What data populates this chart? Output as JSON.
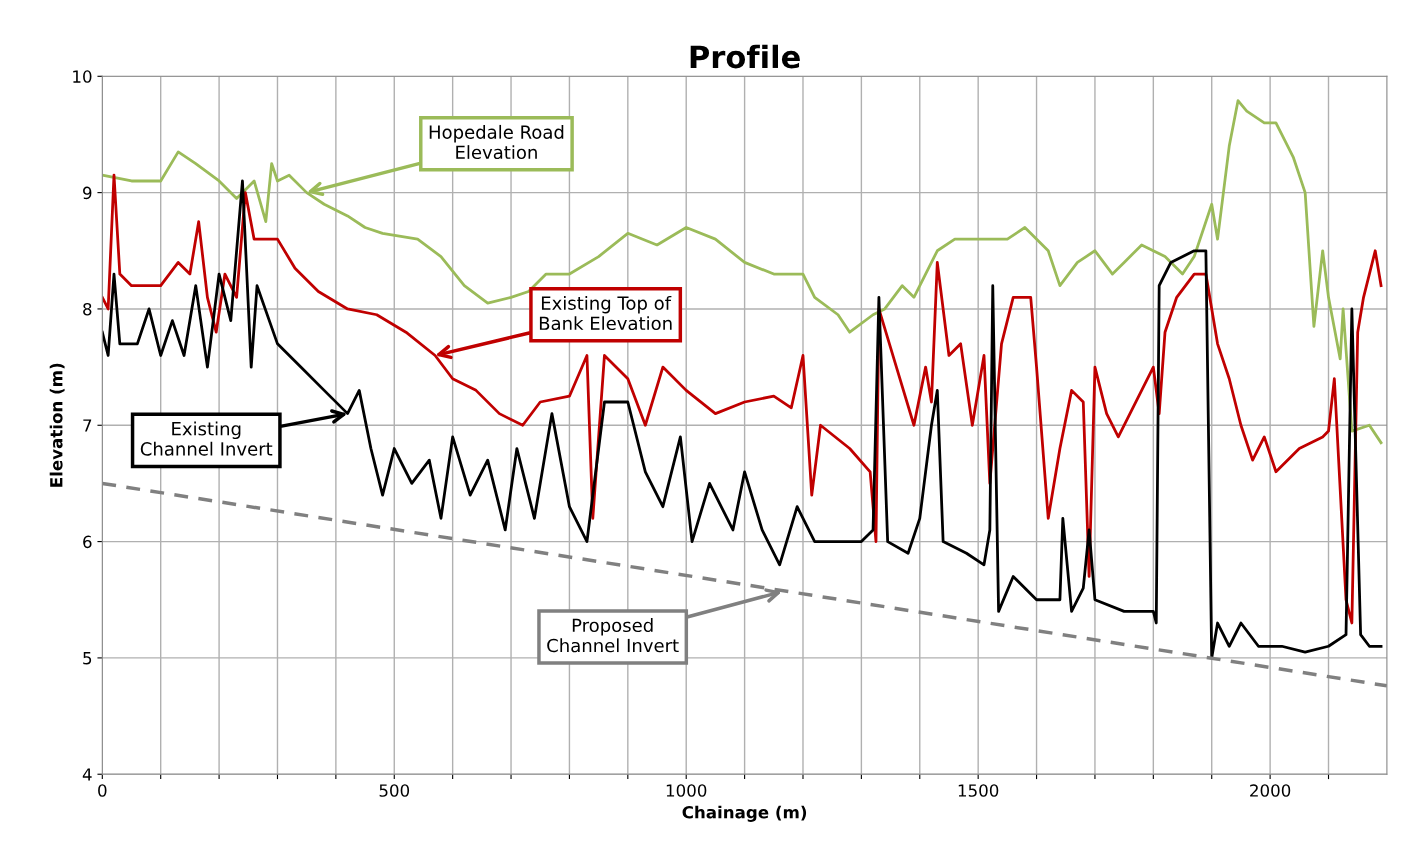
{
  "chart_data": {
    "type": "line",
    "title": "Profile",
    "xlabel": "Chainage (m)",
    "ylabel": "Elevation (m)",
    "xlim": [
      0,
      2200
    ],
    "ylim": [
      4,
      10
    ],
    "xticks": [
      0,
      {
        "value": 100,
        "label": null
      },
      {
        "value": 200,
        "label": null
      },
      {
        "value": 300,
        "label": null
      },
      {
        "value": 400,
        "label": null
      },
      500,
      {
        "value": 600,
        "label": null
      },
      {
        "value": 700,
        "label": null
      },
      {
        "value": 800,
        "label": null
      },
      {
        "value": 900,
        "label": null
      },
      1000,
      {
        "value": 1100,
        "label": null
      },
      {
        "value": 1200,
        "label": null
      },
      {
        "value": 1300,
        "label": null
      },
      {
        "value": 1400,
        "label": null
      },
      1500,
      {
        "value": 1600,
        "label": null
      },
      {
        "value": 1700,
        "label": null
      },
      {
        "value": 1800,
        "label": null
      },
      {
        "value": 1900,
        "label": null
      },
      2000,
      {
        "value": 2100,
        "label": null
      }
    ],
    "yticks": [
      4,
      5,
      6,
      7,
      8,
      9,
      10
    ],
    "grid": true,
    "series": [
      {
        "color": "#9bbb59",
        "line_style": "solid",
        "x": [
          0,
          50,
          100,
          130,
          160,
          200,
          230,
          260,
          280,
          290,
          300,
          320,
          350,
          380,
          420,
          450,
          480,
          540,
          580,
          620,
          660,
          700,
          730,
          760,
          800,
          850,
          900,
          950,
          1000,
          1050,
          1100,
          1150,
          1200,
          1220,
          1260,
          1280,
          1320,
          1340,
          1370,
          1390,
          1430,
          1460,
          1500,
          1550,
          1580,
          1620,
          1640,
          1670,
          1700,
          1730,
          1750,
          1780,
          1820,
          1850,
          1870,
          1900,
          1910,
          1930,
          1945,
          1960,
          1990,
          2010,
          2040,
          2060,
          2075,
          2090,
          2100,
          2120,
          2125,
          2140,
          2170,
          2190
        ],
        "values": [
          9.15,
          9.1,
          9.1,
          9.35,
          9.25,
          9.1,
          8.95,
          9.1,
          8.75,
          9.25,
          9.1,
          9.15,
          9.0,
          8.9,
          8.8,
          8.7,
          8.65,
          8.6,
          8.45,
          8.2,
          8.05,
          8.1,
          8.15,
          8.3,
          8.3,
          8.45,
          8.65,
          8.55,
          8.7,
          8.6,
          8.4,
          8.3,
          8.3,
          8.1,
          7.95,
          7.8,
          7.95,
          8.0,
          8.2,
          8.1,
          8.5,
          8.6,
          8.6,
          8.6,
          8.7,
          8.5,
          8.2,
          8.4,
          8.5,
          8.3,
          8.4,
          8.55,
          8.45,
          8.3,
          8.45,
          8.9,
          8.6,
          9.4,
          9.79,
          9.7,
          9.6,
          9.6,
          9.3,
          9.0,
          7.85,
          8.5,
          8.1,
          7.57,
          8.0,
          6.95,
          7.0,
          6.85
        ]
      },
      {
        "color": "#c00000",
        "line_style": "solid",
        "x": [
          0,
          10,
          20,
          30,
          50,
          100,
          130,
          150,
          165,
          180,
          195,
          210,
          230,
          245,
          260,
          300,
          330,
          370,
          420,
          470,
          520,
          570,
          600,
          640,
          680,
          720,
          750,
          800,
          830,
          840,
          860,
          900,
          930,
          960,
          1000,
          1050,
          1100,
          1150,
          1180,
          1200,
          1215,
          1230,
          1280,
          1315,
          1325,
          1330,
          1360,
          1390,
          1410,
          1420,
          1430,
          1450,
          1470,
          1490,
          1510,
          1520,
          1540,
          1560,
          1590,
          1600,
          1620,
          1640,
          1660,
          1680,
          1690,
          1700,
          1720,
          1740,
          1780,
          1800,
          1810,
          1820,
          1840,
          1870,
          1890,
          1910,
          1930,
          1950,
          1970,
          1990,
          2010,
          2050,
          2090,
          2100,
          2110,
          2130,
          2140,
          2150,
          2160,
          2170,
          2180,
          2190
        ],
        "values": [
          8.1,
          8.0,
          9.15,
          8.3,
          8.2,
          8.2,
          8.4,
          8.3,
          8.75,
          8.1,
          7.8,
          8.3,
          8.1,
          9.0,
          8.6,
          8.6,
          8.35,
          8.15,
          8.0,
          7.95,
          7.8,
          7.6,
          7.4,
          7.3,
          7.1,
          7.0,
          7.2,
          7.25,
          7.6,
          6.2,
          7.6,
          7.4,
          7.0,
          7.5,
          7.3,
          7.1,
          7.2,
          7.25,
          7.15,
          7.6,
          6.4,
          7.0,
          6.8,
          6.6,
          6.0,
          8.0,
          7.5,
          7.0,
          7.5,
          7.2,
          8.4,
          7.6,
          7.7,
          7.0,
          7.6,
          6.5,
          7.7,
          8.1,
          8.1,
          7.5,
          6.2,
          6.8,
          7.3,
          7.2,
          5.7,
          7.5,
          7.1,
          6.9,
          7.3,
          7.5,
          7.1,
          7.8,
          8.1,
          8.3,
          8.3,
          7.7,
          7.4,
          7.0,
          6.7,
          6.9,
          6.6,
          6.8,
          6.9,
          6.95,
          7.4,
          5.5,
          5.3,
          7.8,
          8.1,
          8.3,
          8.5,
          8.2
        ]
      },
      {
        "color": "#000000",
        "line_style": "solid",
        "x": [
          0,
          10,
          20,
          30,
          60,
          80,
          100,
          120,
          140,
          160,
          180,
          200,
          220,
          240,
          255,
          265,
          300,
          340,
          380,
          420,
          440,
          460,
          480,
          500,
          530,
          560,
          580,
          600,
          630,
          660,
          690,
          710,
          740,
          770,
          800,
          830,
          860,
          900,
          930,
          960,
          990,
          1010,
          1040,
          1080,
          1100,
          1130,
          1160,
          1190,
          1220,
          1260,
          1300,
          1320,
          1330,
          1345,
          1380,
          1400,
          1420,
          1430,
          1440,
          1480,
          1510,
          1520,
          1525,
          1535,
          1560,
          1600,
          1640,
          1645,
          1660,
          1680,
          1690,
          1700,
          1750,
          1800,
          1805,
          1810,
          1830,
          1870,
          1890,
          1900,
          1910,
          1930,
          1950,
          1980,
          2020,
          2060,
          2100,
          2130,
          2140,
          2155,
          2170,
          2190
        ],
        "values": [
          7.8,
          7.6,
          8.3,
          7.7,
          7.7,
          8.0,
          7.6,
          7.9,
          7.6,
          8.2,
          7.5,
          8.3,
          7.9,
          9.1,
          7.5,
          8.2,
          7.7,
          7.5,
          7.3,
          7.1,
          7.3,
          6.8,
          6.4,
          6.8,
          6.5,
          6.7,
          6.2,
          6.9,
          6.4,
          6.7,
          6.1,
          6.8,
          6.2,
          7.1,
          6.3,
          6.0,
          7.2,
          7.2,
          6.6,
          6.3,
          6.9,
          6.0,
          6.5,
          6.1,
          6.6,
          6.1,
          5.8,
          6.3,
          6.0,
          6.0,
          6.0,
          6.1,
          8.1,
          6.0,
          5.9,
          6.2,
          7.0,
          7.3,
          6.0,
          5.9,
          5.8,
          6.1,
          8.2,
          5.4,
          5.7,
          5.5,
          5.5,
          6.2,
          5.4,
          5.6,
          6.1,
          5.5,
          5.4,
          5.4,
          5.3,
          8.2,
          8.4,
          8.5,
          8.5,
          5.0,
          5.3,
          5.1,
          5.3,
          5.1,
          5.1,
          5.05,
          5.1,
          5.2,
          8.0,
          5.2,
          5.1,
          5.1
        ]
      },
      {
        "color": "#808080",
        "line_style": "dashed",
        "x": [
          0,
          2200
        ],
        "values": [
          6.5,
          4.76
        ]
      }
    ],
    "annotations": [
      {
        "text": "Hopedale Road\nElevation",
        "x": 350,
        "y": 9.0
      },
      {
        "text": "Existing Top of\nBank Elevation",
        "x": 570,
        "y": 7.6
      },
      {
        "text": "Existing\nChannel Invert",
        "x": 420,
        "y": 7.1
      },
      {
        "text": "Proposed\nChannel Invert",
        "x": 1164,
        "y": 5.57
      }
    ]
  }
}
